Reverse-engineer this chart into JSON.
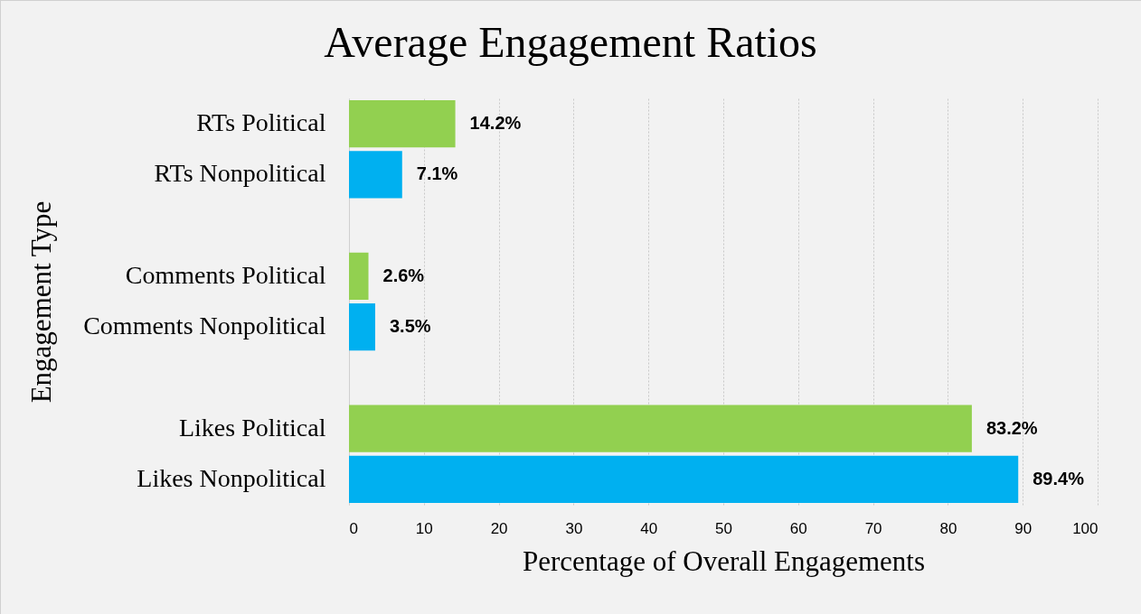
{
  "chart_data": {
    "type": "bar",
    "orientation": "horizontal",
    "title": "Average Engagement Ratios",
    "xlabel": "Percentage of Overall Engagements",
    "ylabel": "Engagement Type",
    "categories": [
      "RTs Political",
      "RTs Nonpolitical",
      null,
      "Comments Political",
      "Comments Nonpolitical",
      null,
      "Likes Political",
      "Likes Nonpolitical"
    ],
    "values": [
      14.2,
      7.1,
      null,
      2.6,
      3.5,
      null,
      83.2,
      89.4
    ],
    "colors": [
      "#92d050",
      "#00b0f0",
      null,
      "#92d050",
      "#00b0f0",
      null,
      "#92d050",
      "#00b0f0"
    ],
    "value_labels": [
      "14.2%",
      "7.1%",
      null,
      "2.6%",
      "3.5%",
      null,
      "83.2%",
      "89.4%"
    ],
    "xlim": [
      0,
      100
    ],
    "xticks": [
      0,
      10,
      20,
      30,
      40,
      50,
      60,
      70,
      80,
      90,
      100
    ],
    "grid": "x"
  }
}
